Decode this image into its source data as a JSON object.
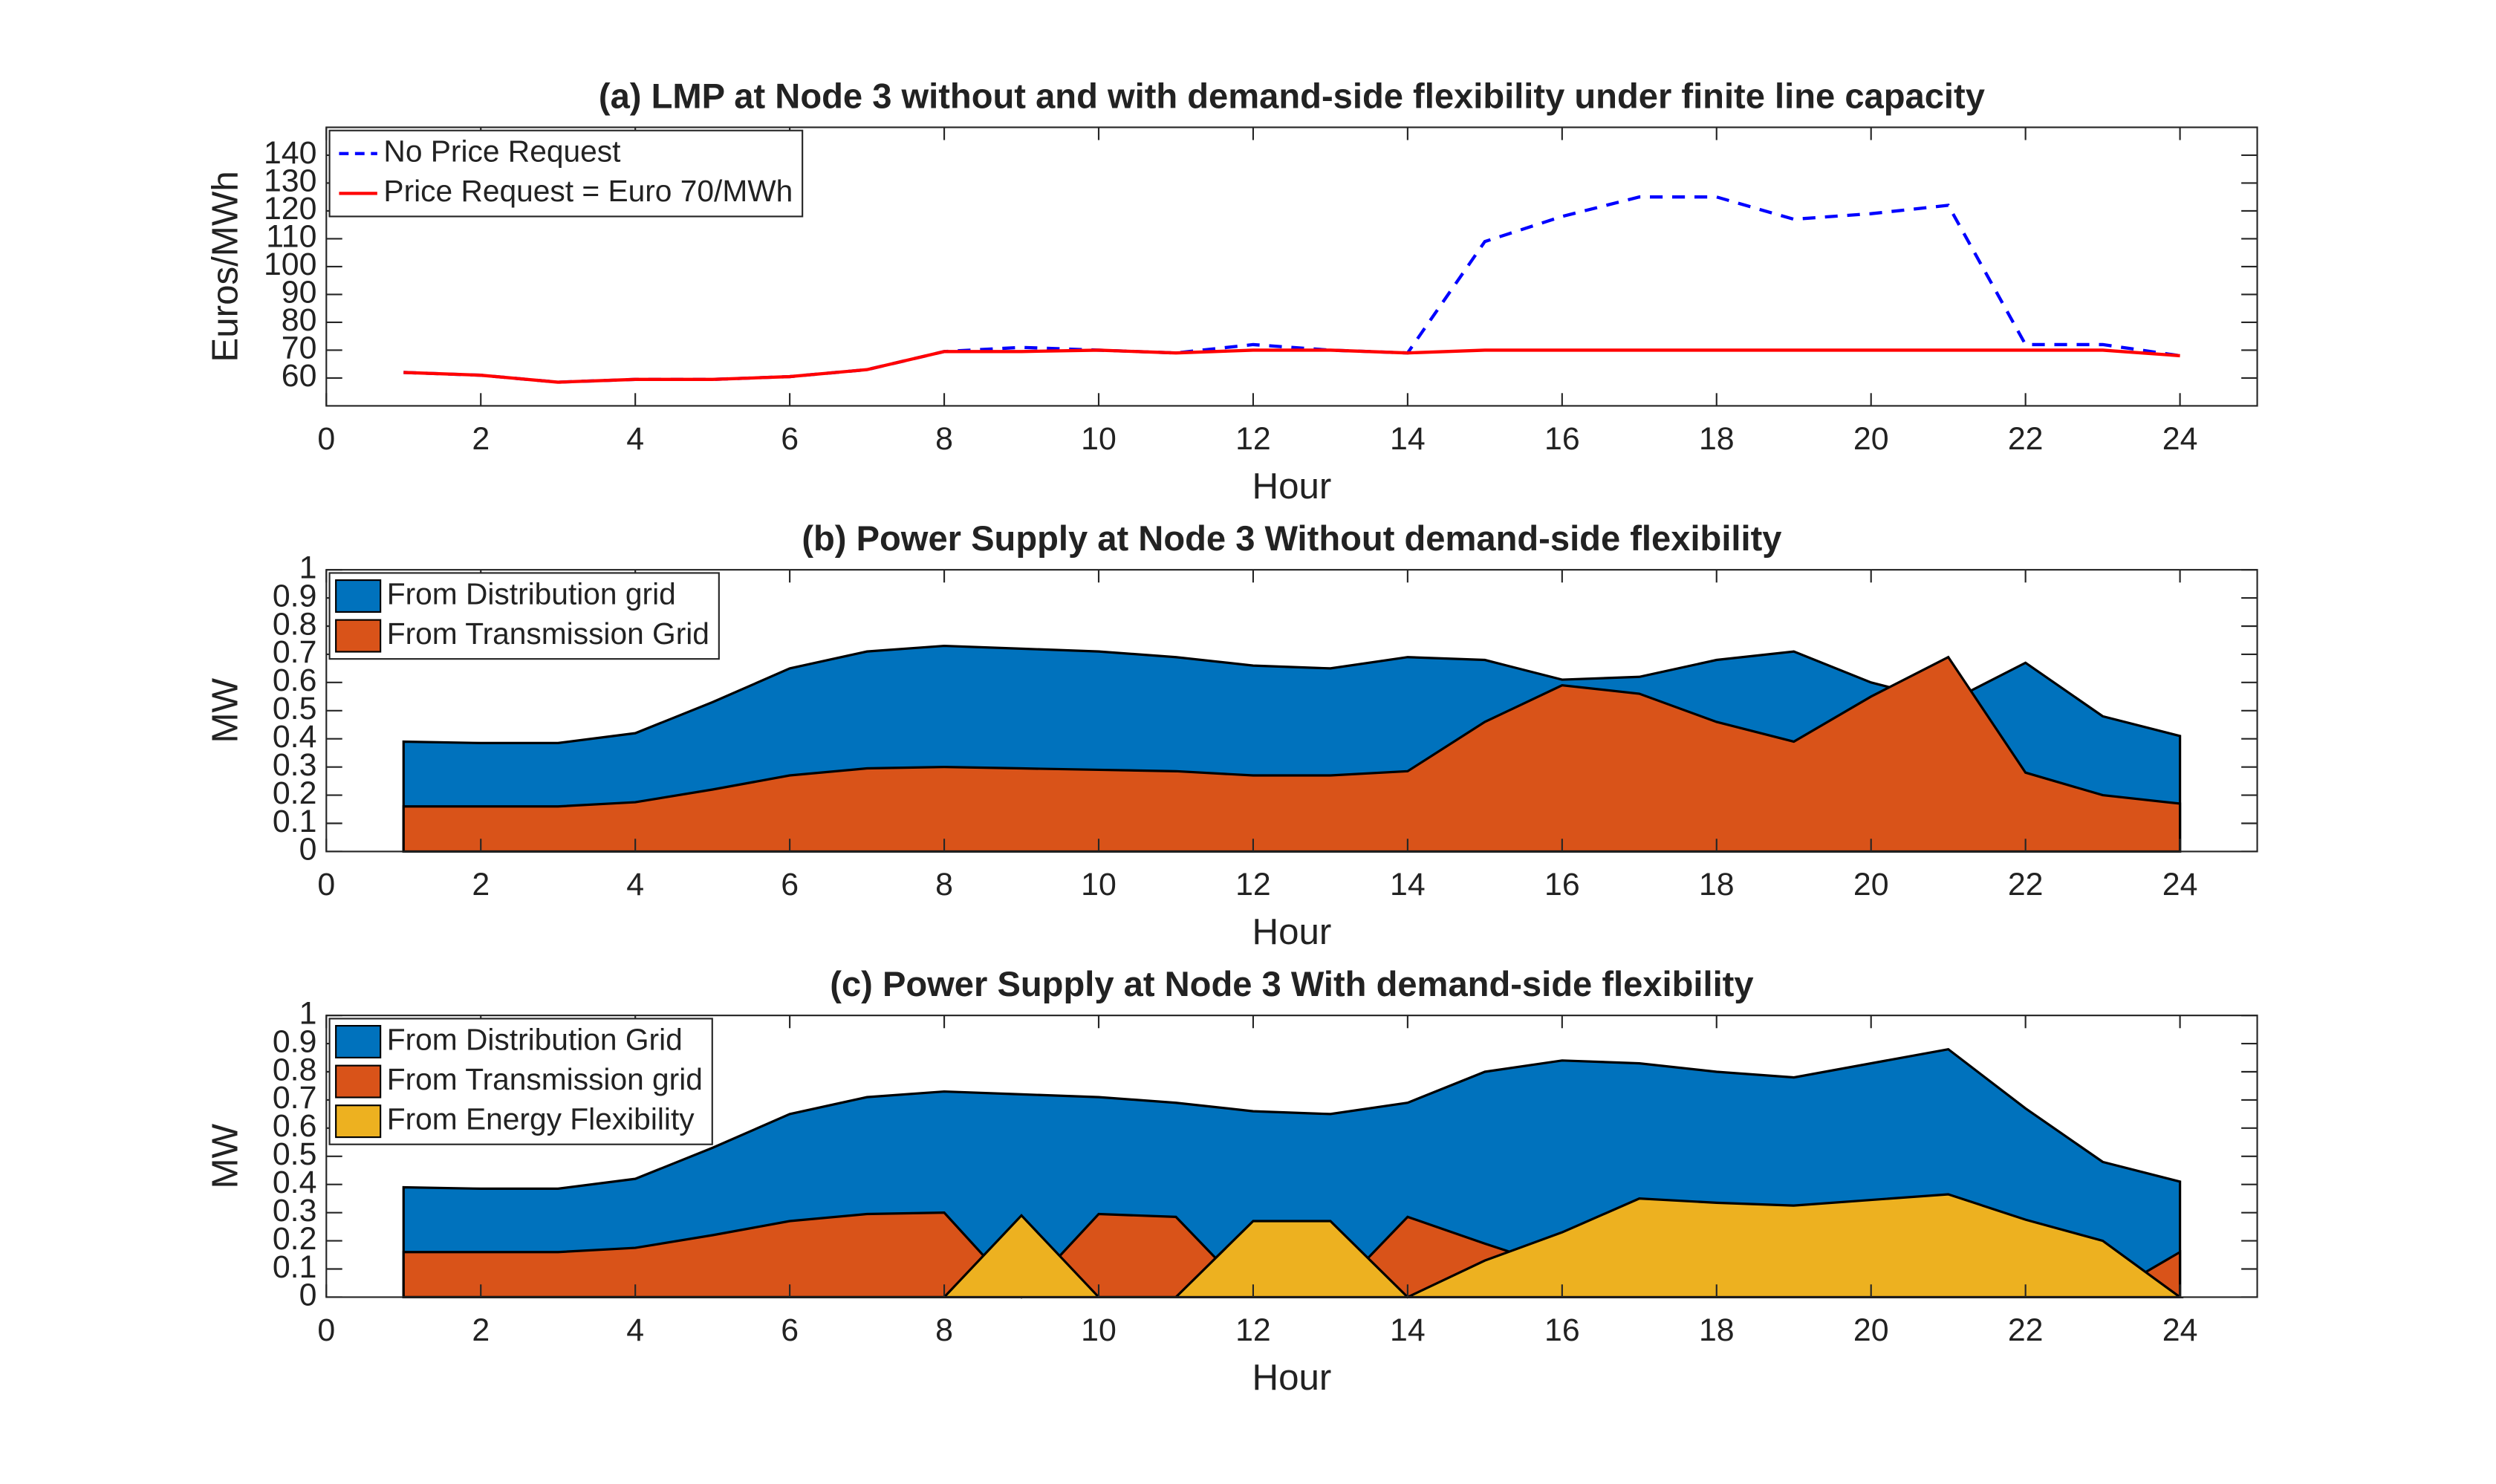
{
  "chart_data": [
    {
      "type": "line",
      "title": "(a) LMP at Node 3 without and with demand-side flexibility under finite line capacity",
      "x_label": "Hour",
      "y_label": "Euros/MWh",
      "x": [
        1,
        2,
        3,
        4,
        5,
        6,
        7,
        8,
        9,
        10,
        11,
        12,
        13,
        14,
        15,
        16,
        17,
        18,
        19,
        20,
        21,
        22,
        23,
        24
      ],
      "xlim": [
        0,
        25
      ],
      "xticks": [
        0,
        2,
        4,
        6,
        8,
        10,
        12,
        14,
        16,
        18,
        20,
        22,
        24
      ],
      "ylim": [
        50,
        150
      ],
      "yticks": [
        60,
        70,
        80,
        90,
        100,
        110,
        120,
        130,
        140
      ],
      "legend": "upper left",
      "series": [
        {
          "name": "No Price Request",
          "color": "#0000ff",
          "line_style": "dashed",
          "values": [
            62,
            61,
            58.5,
            59.5,
            59.5,
            60.5,
            63,
            69.5,
            71,
            70,
            69,
            72,
            70,
            69,
            109,
            118,
            125,
            125,
            117,
            119,
            122,
            72,
            72,
            68
          ]
        },
        {
          "name": "Price Request = Euro 70/MWh",
          "color": "#ff0000",
          "line_style": "solid",
          "values": [
            62,
            61,
            58.5,
            59.5,
            59.5,
            60.5,
            63,
            69.5,
            69.5,
            70,
            69,
            70,
            70,
            69,
            70,
            70,
            70,
            70,
            70,
            70,
            70,
            70,
            70,
            68
          ]
        }
      ]
    },
    {
      "type": "area",
      "title": "(b) Power Supply at Node 3 Without demand-side flexibility",
      "x_label": "Hour",
      "y_label": "MW",
      "x": [
        1,
        2,
        3,
        4,
        5,
        6,
        7,
        8,
        9,
        10,
        11,
        12,
        13,
        14,
        15,
        16,
        17,
        18,
        19,
        20,
        21,
        22,
        23,
        24
      ],
      "xlim": [
        0,
        25
      ],
      "xticks": [
        0,
        2,
        4,
        6,
        8,
        10,
        12,
        14,
        16,
        18,
        20,
        22,
        24
      ],
      "ylim": [
        0,
        1
      ],
      "yticks": [
        0,
        0.1,
        0.2,
        0.3,
        0.4,
        0.5,
        0.6,
        0.7,
        0.8,
        0.9,
        1
      ],
      "legend": "upper left",
      "series": [
        {
          "name": "From Distribution grid",
          "color": "#0072bd",
          "values": [
            0.39,
            0.385,
            0.385,
            0.42,
            0.53,
            0.65,
            0.71,
            0.73,
            0.72,
            0.71,
            0.69,
            0.66,
            0.65,
            0.69,
            0.68,
            0.61,
            0.62,
            0.68,
            0.71,
            0.6,
            0.53,
            0.67,
            0.48,
            0.41
          ]
        },
        {
          "name": "From Transmission Grid",
          "color": "#d95319",
          "values": [
            0.16,
            0.16,
            0.16,
            0.175,
            0.22,
            0.27,
            0.295,
            0.3,
            0.295,
            0.29,
            0.285,
            0.27,
            0.27,
            0.285,
            0.46,
            0.59,
            0.56,
            0.46,
            0.39,
            0.55,
            0.69,
            0.28,
            0.2,
            0.17
          ]
        }
      ]
    },
    {
      "type": "area",
      "title": "(c) Power Supply at Node 3 With demand-side flexibility",
      "x_label": "Hour",
      "y_label": "MW",
      "x": [
        1,
        2,
        3,
        4,
        5,
        6,
        7,
        8,
        9,
        10,
        11,
        12,
        13,
        14,
        15,
        16,
        17,
        18,
        19,
        20,
        21,
        22,
        23,
        24
      ],
      "xlim": [
        0,
        25
      ],
      "xticks": [
        0,
        2,
        4,
        6,
        8,
        10,
        12,
        14,
        16,
        18,
        20,
        22,
        24
      ],
      "ylim": [
        0,
        1
      ],
      "yticks": [
        0,
        0.1,
        0.2,
        0.3,
        0.4,
        0.5,
        0.6,
        0.7,
        0.8,
        0.9,
        1
      ],
      "legend": "upper left",
      "series": [
        {
          "name": "From Distribution Grid",
          "color": "#0072bd",
          "values": [
            0.39,
            0.385,
            0.385,
            0.42,
            0.53,
            0.65,
            0.71,
            0.73,
            0.72,
            0.71,
            0.69,
            0.66,
            0.65,
            0.69,
            0.8,
            0.84,
            0.83,
            0.8,
            0.78,
            0.83,
            0.88,
            0.67,
            0.48,
            0.41
          ]
        },
        {
          "name": "From Transmission grid",
          "color": "#d95319",
          "values": [
            0.16,
            0.16,
            0.16,
            0.175,
            0.22,
            0.27,
            0.295,
            0.3,
            0,
            0.295,
            0.285,
            0,
            0,
            0.285,
            0.19,
            0.1,
            0,
            0,
            0,
            0,
            0,
            0,
            0,
            0.16
          ]
        },
        {
          "name": "From Energy Flexibility",
          "color": "#edb120",
          "values": [
            0,
            0,
            0,
            0,
            0,
            0,
            0,
            0,
            0.29,
            0,
            0,
            0.27,
            0.27,
            0,
            0.13,
            0.23,
            0.35,
            0.335,
            0.325,
            0.345,
            0.365,
            0.275,
            0.2,
            0
          ]
        }
      ]
    }
  ]
}
